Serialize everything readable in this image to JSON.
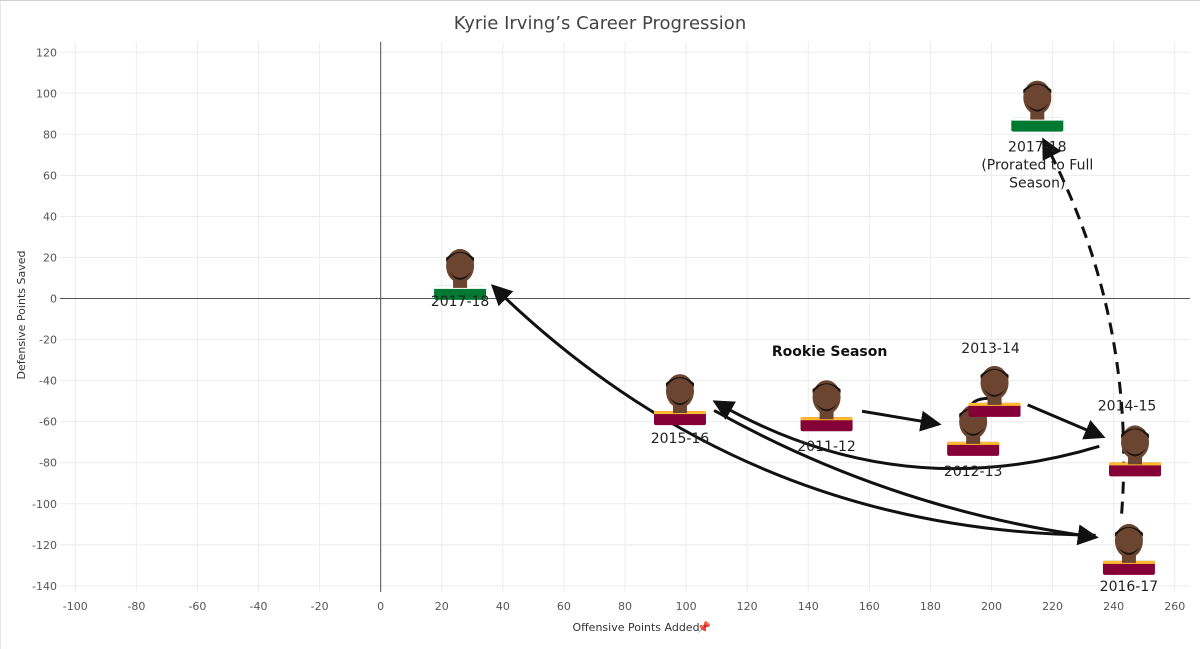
{
  "chart_data": {
    "type": "scatter",
    "title": "Kyrie Irving’s Career Progression",
    "xlabel": "Offensive Points Added",
    "ylabel": "Defensive Points Saved",
    "xlim": [
      -105,
      265
    ],
    "ylim": [
      -143,
      125
    ],
    "x_ticks": [
      -100,
      -80,
      -60,
      -40,
      -20,
      0,
      20,
      40,
      60,
      80,
      100,
      120,
      140,
      160,
      180,
      200,
      220,
      240,
      260
    ],
    "y_ticks": [
      -140,
      -120,
      -100,
      -80,
      -60,
      -40,
      -20,
      0,
      20,
      40,
      60,
      80,
      100,
      120
    ],
    "grid": true,
    "colors": {
      "cavs": "#860038",
      "cavs_gold": "#FDBB30",
      "celtics": "#007A33",
      "skin": "#6b4530",
      "arrow": "#111111"
    },
    "points": [
      {
        "id": "2011-12",
        "label": "2011-12",
        "x": 146,
        "y": -52,
        "team": "cavs"
      },
      {
        "id": "2012-13",
        "label": "2012-13",
        "x": 194,
        "y": -64,
        "team": "cavs"
      },
      {
        "id": "2013-14",
        "label": "2013-14",
        "x": 201,
        "y": -45,
        "team": "cavs"
      },
      {
        "id": "2014-15",
        "label": "2014-15",
        "x": 247,
        "y": -74,
        "team": "cavs"
      },
      {
        "id": "2015-16",
        "label": "2015-16",
        "x": 98,
        "y": -49,
        "team": "cavs"
      },
      {
        "id": "2016-17",
        "label": "2016-17",
        "x": 245,
        "y": -122,
        "team": "cavs"
      },
      {
        "id": "2017-18",
        "label": "2017-18",
        "x": 26,
        "y": 12,
        "team": "celtics"
      },
      {
        "id": "2017-18-prorated",
        "label": "2017-18\n(Prorated to Full\nSeason)",
        "x": 215,
        "y": 94,
        "team": "celtics"
      }
    ],
    "annotations": [
      {
        "text": "Rookie Season",
        "x": 147,
        "y": -28
      }
    ],
    "arrows": [
      {
        "from": "2011-12",
        "to": "2012-13",
        "dashed": false
      },
      {
        "from": "2012-13",
        "to": "2013-14",
        "dashed": false
      },
      {
        "from": "2013-14",
        "to": "2014-15",
        "dashed": false
      },
      {
        "from": "2014-15",
        "to": "2015-16",
        "dashed": false
      },
      {
        "from": "2015-16",
        "to": "2016-17",
        "dashed": false
      },
      {
        "from": "2016-17",
        "to": "2017-18",
        "dashed": false
      },
      {
        "from": "2016-17",
        "to": "2017-18-prorated",
        "dashed": true
      }
    ]
  }
}
